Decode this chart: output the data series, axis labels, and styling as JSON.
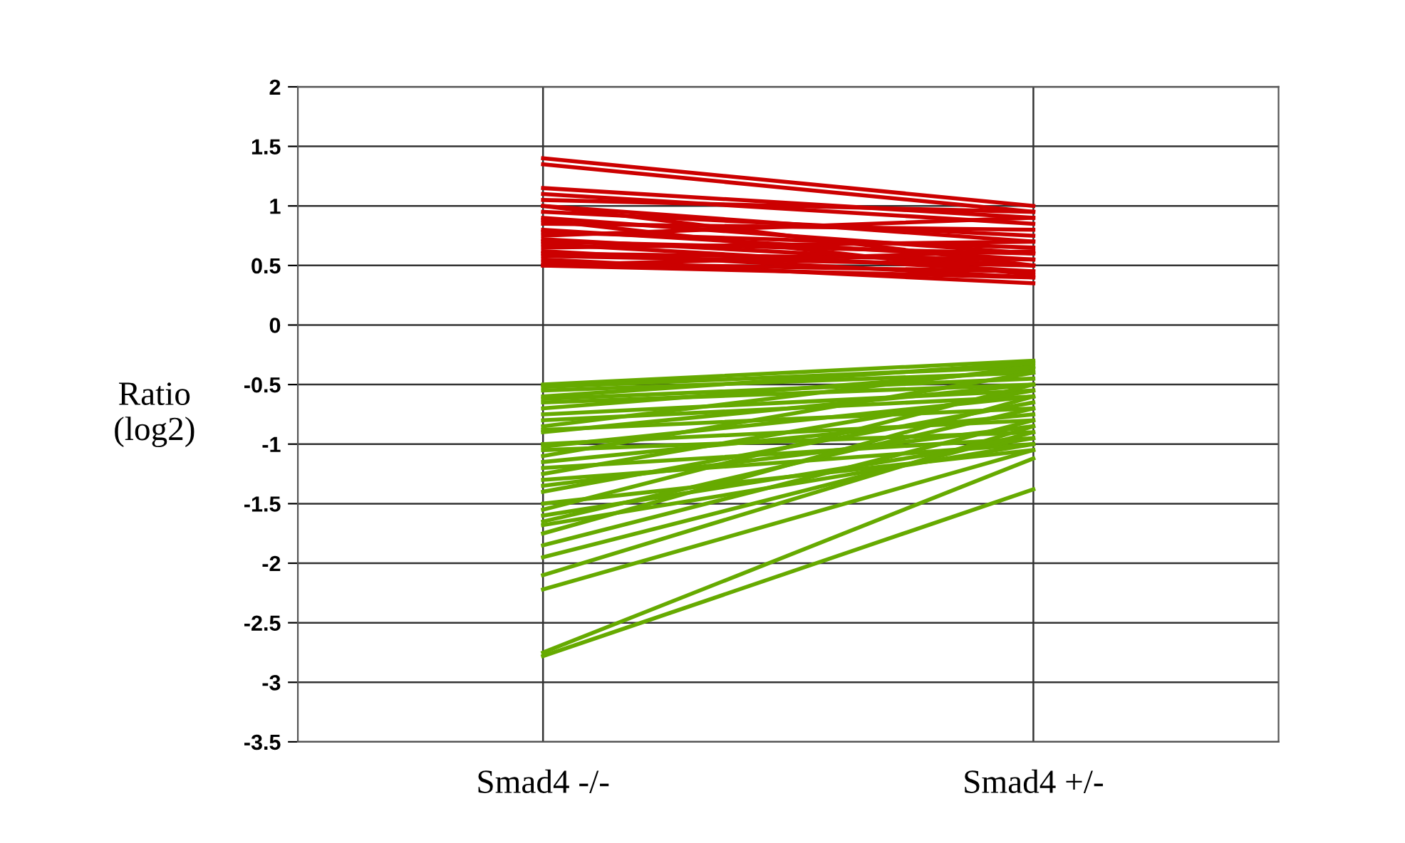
{
  "chart_data": {
    "type": "line",
    "ylabel": "Ratio\n(log2)",
    "categories": [
      "Smad4 -/-",
      "Smad4 +/-"
    ],
    "ylim": [
      -3.5,
      2
    ],
    "yticks": [
      2,
      1.5,
      1,
      0.5,
      0,
      -0.5,
      -1,
      -1.5,
      -2,
      -2.5,
      -3,
      -3.5
    ],
    "grid": true,
    "marker": "none",
    "line_style": "solid",
    "series": [
      {
        "color": "#cc0000",
        "values": [
          1.4,
          1.0
        ]
      },
      {
        "color": "#cc0000",
        "values": [
          1.35,
          0.95
        ]
      },
      {
        "color": "#cc0000",
        "values": [
          1.15,
          0.9
        ]
      },
      {
        "color": "#cc0000",
        "values": [
          1.1,
          0.85
        ]
      },
      {
        "color": "#cc0000",
        "values": [
          1.05,
          0.95
        ]
      },
      {
        "color": "#cc0000",
        "values": [
          1.0,
          0.7
        ]
      },
      {
        "color": "#cc0000",
        "values": [
          0.95,
          0.75
        ]
      },
      {
        "color": "#cc0000",
        "values": [
          0.9,
          0.6
        ]
      },
      {
        "color": "#cc0000",
        "values": [
          0.85,
          0.8
        ]
      },
      {
        "color": "#cc0000",
        "values": [
          0.8,
          0.55
        ]
      },
      {
        "color": "#cc0000",
        "values": [
          0.78,
          0.65
        ]
      },
      {
        "color": "#cc0000",
        "values": [
          0.75,
          0.9
        ]
      },
      {
        "color": "#cc0000",
        "values": [
          0.72,
          0.5
        ]
      },
      {
        "color": "#cc0000",
        "values": [
          0.7,
          0.6
        ]
      },
      {
        "color": "#cc0000",
        "values": [
          0.68,
          0.45
        ]
      },
      {
        "color": "#cc0000",
        "values": [
          0.65,
          0.7
        ]
      },
      {
        "color": "#cc0000",
        "values": [
          0.62,
          0.4
        ]
      },
      {
        "color": "#cc0000",
        "values": [
          0.6,
          0.55
        ]
      },
      {
        "color": "#cc0000",
        "values": [
          0.58,
          0.5
        ]
      },
      {
        "color": "#cc0000",
        "values": [
          0.55,
          0.35
        ]
      },
      {
        "color": "#cc0000",
        "values": [
          0.52,
          0.45
        ]
      },
      {
        "color": "#cc0000",
        "values": [
          0.5,
          0.4
        ]
      },
      {
        "color": "#cc0000",
        "values": [
          0.5,
          0.62
        ]
      },
      {
        "color": "#cc0000",
        "values": [
          0.88,
          0.42
        ]
      },
      {
        "color": "#cc0000",
        "values": [
          1.0,
          0.5
        ]
      },
      {
        "color": "#66aa00",
        "values": [
          -0.5,
          -0.3
        ]
      },
      {
        "color": "#66aa00",
        "values": [
          -0.52,
          -0.35
        ]
      },
      {
        "color": "#66aa00",
        "values": [
          -0.55,
          -0.4
        ]
      },
      {
        "color": "#66aa00",
        "values": [
          -0.6,
          -0.32
        ]
      },
      {
        "color": "#66aa00",
        "values": [
          -0.62,
          -0.45
        ]
      },
      {
        "color": "#66aa00",
        "values": [
          -0.65,
          -0.5
        ]
      },
      {
        "color": "#66aa00",
        "values": [
          -0.7,
          -0.38
        ]
      },
      {
        "color": "#66aa00",
        "values": [
          -0.75,
          -0.55
        ]
      },
      {
        "color": "#66aa00",
        "values": [
          -0.8,
          -0.6
        ]
      },
      {
        "color": "#66aa00",
        "values": [
          -0.85,
          -0.35
        ]
      },
      {
        "color": "#66aa00",
        "values": [
          -0.88,
          -0.7
        ]
      },
      {
        "color": "#66aa00",
        "values": [
          -0.9,
          -0.5
        ]
      },
      {
        "color": "#66aa00",
        "values": [
          -1.0,
          -0.8
        ]
      },
      {
        "color": "#66aa00",
        "values": [
          -1.02,
          -0.6
        ]
      },
      {
        "color": "#66aa00",
        "values": [
          -1.05,
          -0.9
        ]
      },
      {
        "color": "#66aa00",
        "values": [
          -1.1,
          -0.4
        ]
      },
      {
        "color": "#66aa00",
        "values": [
          -1.15,
          -0.75
        ]
      },
      {
        "color": "#66aa00",
        "values": [
          -1.2,
          -0.95
        ]
      },
      {
        "color": "#66aa00",
        "values": [
          -1.25,
          -0.55
        ]
      },
      {
        "color": "#66aa00",
        "values": [
          -1.3,
          -1.0
        ]
      },
      {
        "color": "#66aa00",
        "values": [
          -1.35,
          -0.85
        ]
      },
      {
        "color": "#66aa00",
        "values": [
          -1.4,
          -0.65
        ]
      },
      {
        "color": "#66aa00",
        "values": [
          -1.5,
          -1.05
        ]
      },
      {
        "color": "#66aa00",
        "values": [
          -1.55,
          -0.5
        ]
      },
      {
        "color": "#66aa00",
        "values": [
          -1.6,
          -0.95
        ]
      },
      {
        "color": "#66aa00",
        "values": [
          -1.65,
          -0.7
        ]
      },
      {
        "color": "#66aa00",
        "values": [
          -1.68,
          -1.0
        ]
      },
      {
        "color": "#66aa00",
        "values": [
          -1.75,
          -0.6
        ]
      },
      {
        "color": "#66aa00",
        "values": [
          -1.85,
          -0.8
        ]
      },
      {
        "color": "#66aa00",
        "values": [
          -1.95,
          -0.9
        ]
      },
      {
        "color": "#66aa00",
        "values": [
          -2.1,
          -0.85
        ]
      },
      {
        "color": "#66aa00",
        "values": [
          -2.22,
          -1.05
        ]
      },
      {
        "color": "#66aa00",
        "values": [
          -2.75,
          -1.12
        ]
      },
      {
        "color": "#66aa00",
        "values": [
          -2.78,
          -1.38
        ]
      }
    ]
  }
}
